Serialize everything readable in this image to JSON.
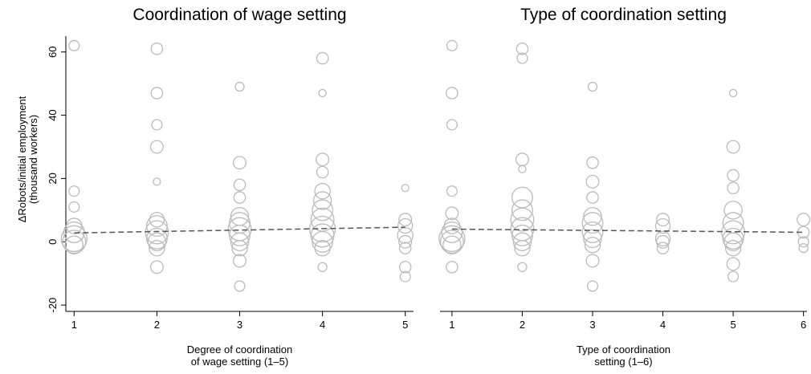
{
  "chart_data": [
    {
      "type": "scatter",
      "title": "Coordination of wage setting",
      "x_label": [
        "Degree of coordination",
        "of wage setting (1–5)"
      ],
      "y_label": [
        "ΔRobots/initial employment",
        "(thousand workers)"
      ],
      "xlim": [
        0.9,
        5.1
      ],
      "xticks": [
        1,
        2,
        3,
        4,
        5
      ],
      "ylim": [
        -22,
        65
      ],
      "yticks": [
        -20,
        0,
        20,
        40,
        60
      ],
      "color": "#bbbbbb",
      "x": [
        1,
        1,
        1,
        1,
        1,
        1,
        1,
        1,
        2,
        2,
        2,
        2,
        2,
        2,
        2,
        2,
        2,
        2,
        2,
        2,
        3,
        3,
        3,
        3,
        3,
        3,
        3,
        3,
        3,
        3,
        3,
        3,
        4,
        4,
        4,
        4,
        4,
        4,
        4,
        4,
        4,
        4,
        4,
        4,
        4,
        5,
        5,
        5,
        5,
        5,
        5,
        5,
        5
      ],
      "values": [
        62,
        16,
        11,
        5,
        3,
        1,
        0,
        -1,
        61,
        47,
        37,
        30,
        19,
        7,
        5,
        3,
        1,
        0,
        -2,
        -8,
        49,
        25,
        18,
        14,
        8,
        6,
        4,
        2,
        0,
        -2,
        -6,
        -14,
        58,
        47,
        26,
        22,
        16,
        13,
        10,
        7,
        4,
        2,
        0,
        -2,
        -8,
        17,
        7,
        5,
        2,
        0,
        -2,
        -8,
        -11
      ],
      "sizes": [
        4,
        4,
        4,
        9,
        16,
        25,
        20,
        12,
        5,
        5,
        4,
        6,
        2,
        8,
        16,
        20,
        16,
        12,
        9,
        6,
        3,
        6,
        5,
        5,
        12,
        16,
        20,
        16,
        12,
        9,
        6,
        4,
        5,
        2,
        6,
        5,
        9,
        12,
        16,
        20,
        25,
        20,
        16,
        9,
        3,
        2,
        6,
        8,
        9,
        6,
        5,
        5,
        4
      ],
      "fit": {
        "x": [
          1,
          5
        ],
        "values": [
          2.8,
          4.6
        ],
        "color": "#555555"
      }
    },
    {
      "type": "scatter",
      "title": "Type of coordination setting",
      "x_label": [
        "Type of coordination",
        "setting (1–6)"
      ],
      "xlim": [
        0.83,
        6.05
      ],
      "xticks": [
        1,
        2,
        3,
        4,
        5,
        6
      ],
      "ylim": [
        -22,
        65
      ],
      "color": "#bbbbbb",
      "x": [
        1,
        1,
        1,
        1,
        1,
        1,
        1,
        1,
        1,
        1,
        1,
        2,
        2,
        2,
        2,
        2,
        2,
        2,
        2,
        2,
        2,
        2,
        2,
        3,
        3,
        3,
        3,
        3,
        3,
        3,
        3,
        3,
        3,
        3,
        4,
        4,
        4,
        4,
        4,
        5,
        5,
        5,
        5,
        5,
        5,
        5,
        5,
        5,
        5,
        5,
        5,
        6,
        6,
        6,
        6
      ],
      "values": [
        62,
        47,
        37,
        16,
        9,
        5,
        3,
        1,
        0,
        -1,
        -8,
        61,
        58,
        26,
        23,
        14,
        10,
        7,
        4,
        2,
        0,
        -2,
        -8,
        49,
        25,
        19,
        14,
        8,
        6,
        3,
        1,
        -1,
        -6,
        -14,
        7,
        5,
        1,
        0,
        -2,
        47,
        30,
        21,
        17,
        10,
        6,
        3,
        1,
        0,
        -2,
        -7,
        -11,
        7,
        3,
        0,
        -2
      ],
      "sizes": [
        4,
        5,
        4,
        4,
        6,
        9,
        16,
        25,
        20,
        12,
        5,
        5,
        4,
        6,
        2,
        16,
        16,
        20,
        20,
        16,
        12,
        9,
        3,
        3,
        5,
        6,
        5,
        12,
        16,
        16,
        12,
        9,
        6,
        4,
        6,
        8,
        8,
        6,
        5,
        2,
        6,
        5,
        5,
        12,
        16,
        20,
        16,
        12,
        9,
        6,
        4,
        6,
        5,
        4,
        3
      ],
      "fit": {
        "x": [
          1,
          6
        ],
        "values": [
          4,
          3
        ],
        "color": "#555555"
      }
    }
  ]
}
